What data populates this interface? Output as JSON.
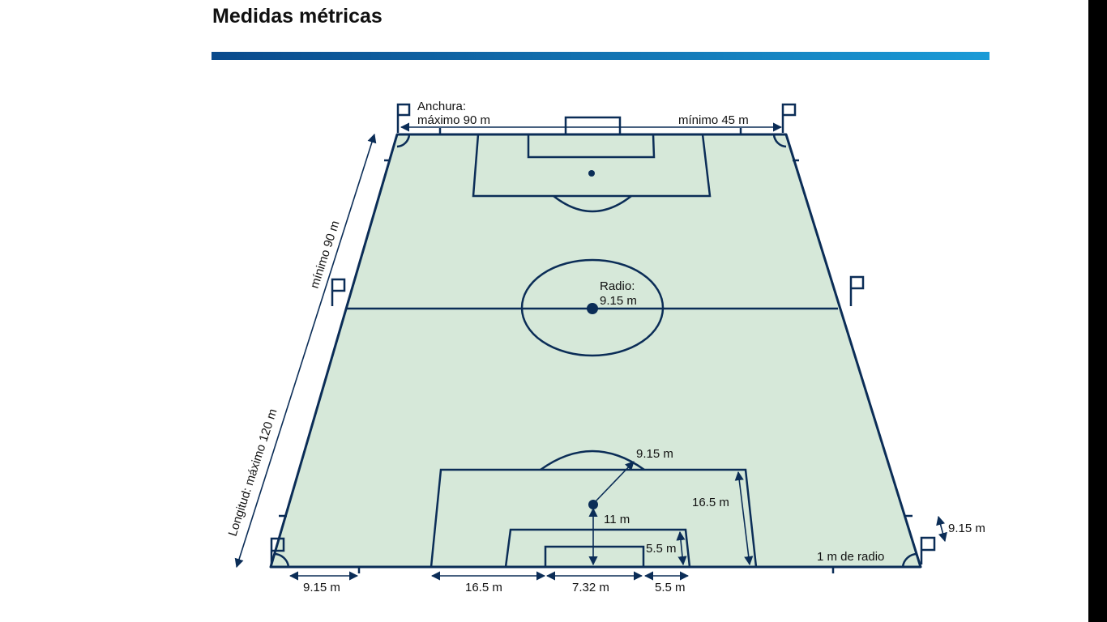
{
  "header": {
    "title": "Medidas métricas"
  },
  "colors": {
    "line": "#0b2d57",
    "field": "#d6e8d9",
    "rule_start": "#0a4a8c",
    "rule_end": "#1a9bd7"
  },
  "labels": {
    "width_heading": "Anchura:",
    "width_max": "máximo 90 m",
    "width_min": "mínimo 45 m",
    "length_min": "mínimo 90 m",
    "length_max": "Longitud: máximo 120 m",
    "center_radius_heading": "Radio:",
    "center_radius_value": "9.15 m",
    "arc_radius": "9.15 m",
    "penalty_area_depth": "16.5 m",
    "penalty_spot_distance": "11 m",
    "goal_area_depth": "5.5 m",
    "corner_arc_radius": "1 m de radio",
    "corner_distance": "9.15 m",
    "bottom_corner_to_mark": "9.15 m",
    "bottom_penalty_offset": "16.5 m",
    "bottom_goal_width": "7.32 m",
    "bottom_goal_area_offset": "5.5 m"
  }
}
